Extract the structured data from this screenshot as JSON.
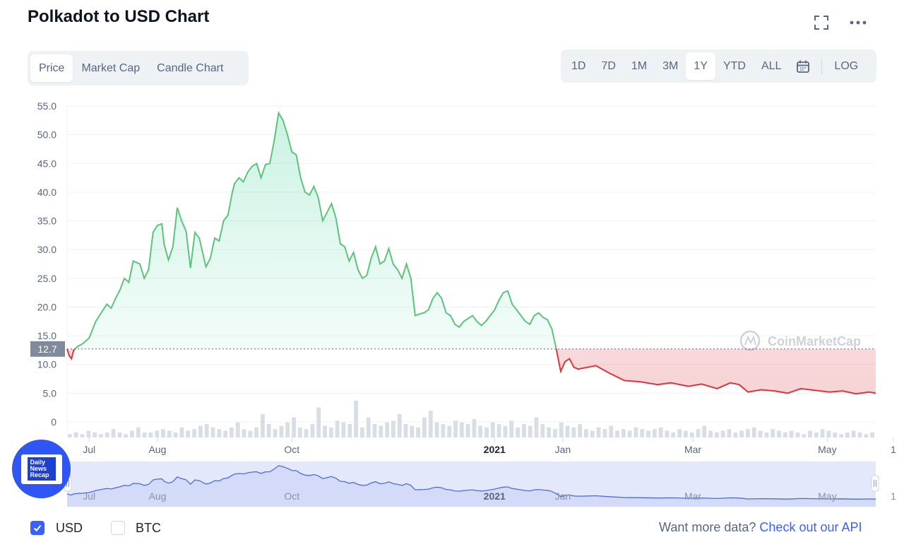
{
  "header": {
    "title": "Polkadot to USD Chart",
    "expand_icon": "fullscreen-icon",
    "more_icon": "more-horizontal-icon"
  },
  "view_tabs": [
    {
      "label": "Price",
      "active": true
    },
    {
      "label": "Market Cap",
      "active": false
    },
    {
      "label": "Candle Chart",
      "active": false
    }
  ],
  "range_tabs": [
    {
      "label": "1D",
      "active": false
    },
    {
      "label": "7D",
      "active": false
    },
    {
      "label": "1M",
      "active": false
    },
    {
      "label": "3M",
      "active": false
    },
    {
      "label": "1Y",
      "active": true
    },
    {
      "label": "YTD",
      "active": false
    },
    {
      "label": "ALL",
      "active": false
    }
  ],
  "range_calendar_icon": "calendar-icon",
  "log_label": "LOG",
  "watermark": "CoinMarketCap",
  "logo_badge": {
    "lines": [
      "Daily",
      "News",
      "Recap"
    ]
  },
  "currency_toggles": [
    {
      "label": "USD",
      "checked": true
    },
    {
      "label": "BTC",
      "checked": false
    }
  ],
  "api_note": {
    "text": "Want more data?",
    "link": "Check out our API"
  },
  "colors": {
    "up": "#16c784",
    "up_line": "#5cc47a",
    "down": "#d9363e",
    "accent": "#3861fb",
    "navigator_fill": "#e3e8fb",
    "navigator_line": "#4c6ed1"
  },
  "chart_data": {
    "type": "area",
    "title": "Polkadot to USD Chart",
    "ylabel": "",
    "xlabel": "",
    "ylim": [
      0,
      55
    ],
    "yticks": [
      "55.0",
      "50.0",
      "45.0",
      "40.0",
      "35.0",
      "30.0",
      "25.0",
      "20.0",
      "15.0",
      "10.0",
      "5.0",
      "0"
    ],
    "reference_price": 12.7,
    "reference_label": "12.7",
    "xlim": [
      "2020-06-21",
      "2021-06-23"
    ],
    "x_ticks": [
      {
        "label": "Jul",
        "date": "2020-07-01",
        "bold": false
      },
      {
        "label": "Aug",
        "date": "2020-08-01",
        "bold": false
      },
      {
        "label": "Oct",
        "date": "2020-10-01",
        "bold": false
      },
      {
        "label": "2021",
        "date": "2021-01-01",
        "bold": true
      },
      {
        "label": "Jan",
        "date": "2021-02-01",
        "bold": false
      },
      {
        "label": "Mar",
        "date": "2021-04-01",
        "bold": false
      },
      {
        "label": "May",
        "date": "2021-06-01",
        "bold": false
      },
      {
        "label": "1",
        "date": "2021-07-01",
        "bold": false
      }
    ],
    "nav_ticks": [
      {
        "label": "Jul",
        "date": "2020-07-01",
        "bold": false
      },
      {
        "label": "Aug",
        "date": "2020-08-01",
        "bold": false
      },
      {
        "label": "Oct",
        "date": "2020-10-01",
        "bold": false
      },
      {
        "label": "2021",
        "date": "2021-01-01",
        "bold": true
      },
      {
        "label": "Jan",
        "date": "2021-02-01",
        "bold": false
      },
      {
        "label": "Mar",
        "date": "2021-04-01",
        "bold": false
      },
      {
        "label": "May",
        "date": "2021-06-01",
        "bold": false
      },
      {
        "label": "1",
        "date": "2021-07-01",
        "bold": false
      }
    ],
    "series": [
      {
        "name": "",
        "points": [
          [
            "2020-06-21",
            12.7
          ],
          [
            "2020-06-22",
            11.5
          ],
          [
            "2020-06-23",
            11.0
          ],
          [
            "2020-06-24",
            12.5
          ],
          [
            "2020-06-26",
            13.2
          ],
          [
            "2020-06-28",
            13.6
          ],
          [
            "2020-07-01",
            14.6
          ],
          [
            "2020-07-04",
            17.5
          ],
          [
            "2020-07-06",
            18.7
          ],
          [
            "2020-07-09",
            20.5
          ],
          [
            "2020-07-11",
            19.8
          ],
          [
            "2020-07-13",
            21.5
          ],
          [
            "2020-07-15",
            23.0
          ],
          [
            "2020-07-17",
            25.0
          ],
          [
            "2020-07-19",
            24.3
          ],
          [
            "2020-07-21",
            28.0
          ],
          [
            "2020-07-24",
            27.5
          ],
          [
            "2020-07-26",
            25.0
          ],
          [
            "2020-07-28",
            26.5
          ],
          [
            "2020-07-30",
            33.0
          ],
          [
            "2020-08-01",
            34.2
          ],
          [
            "2020-08-03",
            34.5
          ],
          [
            "2020-08-04",
            31.0
          ],
          [
            "2020-08-06",
            28.2
          ],
          [
            "2020-08-08",
            30.5
          ],
          [
            "2020-08-10",
            37.3
          ],
          [
            "2020-08-12",
            35.0
          ],
          [
            "2020-08-14",
            33.2
          ],
          [
            "2020-08-16",
            26.8
          ],
          [
            "2020-08-18",
            33.0
          ],
          [
            "2020-08-20",
            32.0
          ],
          [
            "2020-08-23",
            27.0
          ],
          [
            "2020-08-25",
            28.5
          ],
          [
            "2020-08-27",
            32.0
          ],
          [
            "2020-08-29",
            31.5
          ],
          [
            "2020-08-31",
            35.0
          ],
          [
            "2020-09-02",
            36.0
          ],
          [
            "2020-09-04",
            40.0
          ],
          [
            "2020-09-05",
            41.5
          ],
          [
            "2020-09-07",
            42.5
          ],
          [
            "2020-09-09",
            41.8
          ],
          [
            "2020-09-11",
            43.5
          ],
          [
            "2020-09-13",
            44.5
          ],
          [
            "2020-09-15",
            45.0
          ],
          [
            "2020-09-17",
            42.5
          ],
          [
            "2020-09-19",
            44.8
          ],
          [
            "2020-09-21",
            45.0
          ],
          [
            "2020-09-23",
            49.0
          ],
          [
            "2020-09-25",
            53.8
          ],
          [
            "2020-09-27",
            52.5
          ],
          [
            "2020-09-29",
            50.0
          ],
          [
            "2020-10-01",
            47.0
          ],
          [
            "2020-10-03",
            46.5
          ],
          [
            "2020-10-05",
            42.5
          ],
          [
            "2020-10-07",
            40.0
          ],
          [
            "2020-10-09",
            39.5
          ],
          [
            "2020-10-11",
            41.0
          ],
          [
            "2020-10-13",
            39.0
          ],
          [
            "2020-10-15",
            35.0
          ],
          [
            "2020-10-17",
            36.5
          ],
          [
            "2020-10-19",
            38.0
          ],
          [
            "2020-10-21",
            35.5
          ],
          [
            "2020-10-23",
            31.0
          ],
          [
            "2020-10-25",
            30.5
          ],
          [
            "2020-10-27",
            28.0
          ],
          [
            "2020-10-29",
            29.5
          ],
          [
            "2020-10-31",
            26.5
          ],
          [
            "2020-11-02",
            25.0
          ],
          [
            "2020-11-04",
            25.5
          ],
          [
            "2020-11-06",
            28.5
          ],
          [
            "2020-11-08",
            30.5
          ],
          [
            "2020-11-10",
            27.5
          ],
          [
            "2020-11-12",
            28.0
          ],
          [
            "2020-11-14",
            30.2
          ],
          [
            "2020-11-16",
            27.5
          ],
          [
            "2020-11-18",
            26.5
          ],
          [
            "2020-11-20",
            25.0
          ],
          [
            "2020-11-22",
            27.5
          ],
          [
            "2020-11-24",
            25.0
          ],
          [
            "2020-11-26",
            18.5
          ],
          [
            "2020-11-28",
            18.8
          ],
          [
            "2020-11-30",
            19.0
          ],
          [
            "2020-12-02",
            19.5
          ],
          [
            "2020-12-04",
            21.5
          ],
          [
            "2020-12-06",
            22.5
          ],
          [
            "2020-12-08",
            21.5
          ],
          [
            "2020-12-10",
            19.0
          ],
          [
            "2020-12-12",
            18.5
          ],
          [
            "2020-12-14",
            17.0
          ],
          [
            "2020-12-16",
            16.5
          ],
          [
            "2020-12-18",
            17.5
          ],
          [
            "2020-12-20",
            18.0
          ],
          [
            "2020-12-22",
            18.5
          ],
          [
            "2020-12-24",
            17.5
          ],
          [
            "2020-12-26",
            16.8
          ],
          [
            "2020-12-28",
            17.5
          ],
          [
            "2020-12-30",
            18.5
          ],
          [
            "2021-01-01",
            19.5
          ],
          [
            "2021-01-03",
            21.2
          ],
          [
            "2021-01-05",
            22.5
          ],
          [
            "2021-01-07",
            22.8
          ],
          [
            "2021-01-09",
            20.5
          ],
          [
            "2021-01-11",
            19.5
          ],
          [
            "2021-01-13",
            18.5
          ],
          [
            "2021-01-15",
            17.5
          ],
          [
            "2021-01-17",
            17.0
          ],
          [
            "2021-01-19",
            18.5
          ],
          [
            "2021-01-21",
            19.0
          ],
          [
            "2021-01-23",
            18.2
          ],
          [
            "2021-01-25",
            17.8
          ],
          [
            "2021-01-27",
            16.2
          ],
          [
            "2021-01-29",
            12.7
          ],
          [
            "2021-01-31",
            8.8
          ],
          [
            "2021-02-02",
            10.5
          ],
          [
            "2021-02-04",
            11.0
          ],
          [
            "2021-02-06",
            9.5
          ],
          [
            "2021-02-08",
            9.2
          ],
          [
            "2021-02-12",
            9.5
          ],
          [
            "2021-02-16",
            9.8
          ],
          [
            "2021-02-22",
            8.5
          ],
          [
            "2021-03-01",
            7.2
          ],
          [
            "2021-03-08",
            7.0
          ],
          [
            "2021-03-16",
            6.5
          ],
          [
            "2021-03-22",
            6.8
          ],
          [
            "2021-03-30",
            6.2
          ],
          [
            "2021-04-05",
            6.6
          ],
          [
            "2021-04-12",
            5.8
          ],
          [
            "2021-04-18",
            6.8
          ],
          [
            "2021-04-22",
            6.5
          ],
          [
            "2021-04-26",
            5.2
          ],
          [
            "2021-05-02",
            5.6
          ],
          [
            "2021-05-08",
            5.4
          ],
          [
            "2021-05-14",
            5.0
          ],
          [
            "2021-05-20",
            5.8
          ],
          [
            "2021-06-02",
            5.2
          ],
          [
            "2021-06-08",
            5.4
          ],
          [
            "2021-06-14",
            4.9
          ],
          [
            "2021-06-20",
            5.2
          ],
          [
            "2021-06-23",
            5.0
          ]
        ]
      }
    ],
    "volume_relative": [
      2,
      3,
      2,
      4,
      3,
      2,
      3,
      5,
      3,
      2,
      4,
      6,
      3,
      3,
      4,
      5,
      4,
      3,
      6,
      4,
      5,
      7,
      8,
      6,
      5,
      4,
      6,
      9,
      5,
      4,
      6,
      14,
      8,
      5,
      7,
      9,
      12,
      6,
      5,
      8,
      18,
      7,
      6,
      10,
      9,
      8,
      22,
      6,
      12,
      8,
      7,
      9,
      10,
      14,
      8,
      7,
      6,
      12,
      16,
      9,
      8,
      7,
      10,
      9,
      8,
      11,
      7,
      6,
      9,
      8,
      7,
      10,
      6,
      8,
      7,
      12,
      8,
      6,
      5,
      9,
      7,
      6,
      8,
      5,
      4,
      6,
      5,
      7,
      4,
      5,
      4,
      6,
      5,
      4,
      5,
      6,
      4,
      3,
      5,
      4,
      3,
      5,
      7,
      4,
      3,
      4,
      5,
      3,
      4,
      5,
      6,
      4,
      3,
      5,
      4,
      3,
      4,
      3,
      2,
      4,
      3,
      5,
      4,
      3,
      2,
      3,
      4,
      3,
      2,
      3
    ]
  }
}
